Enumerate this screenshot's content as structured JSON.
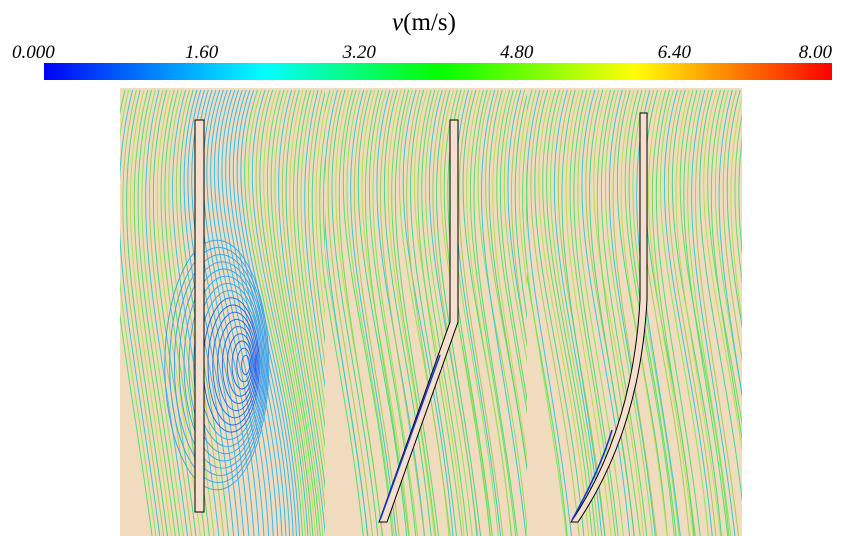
{
  "colorbar": {
    "symbol": "v",
    "unit": "(m/s)",
    "ticks": [
      "0.000",
      "1.60",
      "3.20",
      "4.80",
      "6.40",
      "8.00"
    ]
  }
}
